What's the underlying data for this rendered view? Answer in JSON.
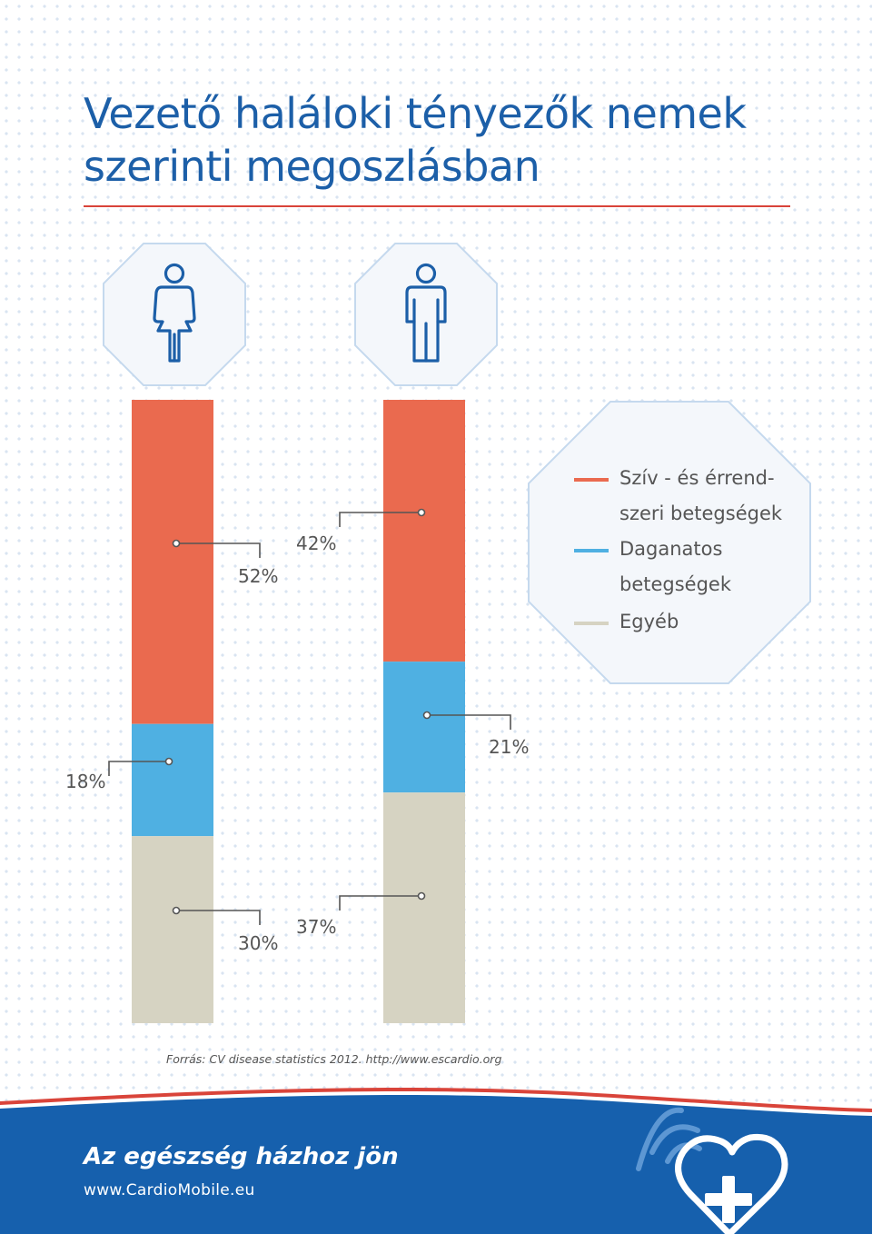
{
  "title": "Vezető haláloki tényezők nemek szerinti megoszlásban",
  "colors": {
    "cardio": "#ea6a4f",
    "cancer": "#4fb0e2",
    "other": "#d6d3c2",
    "title": "#1c5fa8",
    "accent_line": "#d9443a",
    "footer": "#1660ad"
  },
  "icons": {
    "female": "woman-icon",
    "male": "man-icon",
    "logo": "heart-plus-icon"
  },
  "chart_data": {
    "type": "bar",
    "stacked": true,
    "categories": [
      "female",
      "male"
    ],
    "series": [
      {
        "name": "Szív - és érrend-\nszeri betegségek",
        "color": "#ea6a4f",
        "values": [
          52,
          42
        ],
        "labels": [
          "52%",
          "42%"
        ]
      },
      {
        "name": "Daganatos\nbetegségek",
        "color": "#4fb0e2",
        "values": [
          18,
          21
        ],
        "labels": [
          "18%",
          "21%"
        ]
      },
      {
        "name": "Egyéb",
        "color": "#d6d3c2",
        "values": [
          30,
          37
        ],
        "labels": [
          "30%",
          "37%"
        ]
      }
    ],
    "ylim": [
      0,
      100
    ],
    "legend_position": "right"
  },
  "source": "Forrás: CV disease statistics 2012. http://www.escardio.org",
  "footer": {
    "slogan": "Az egészség házhoz jön",
    "url": "www.CardioMobile.eu"
  }
}
